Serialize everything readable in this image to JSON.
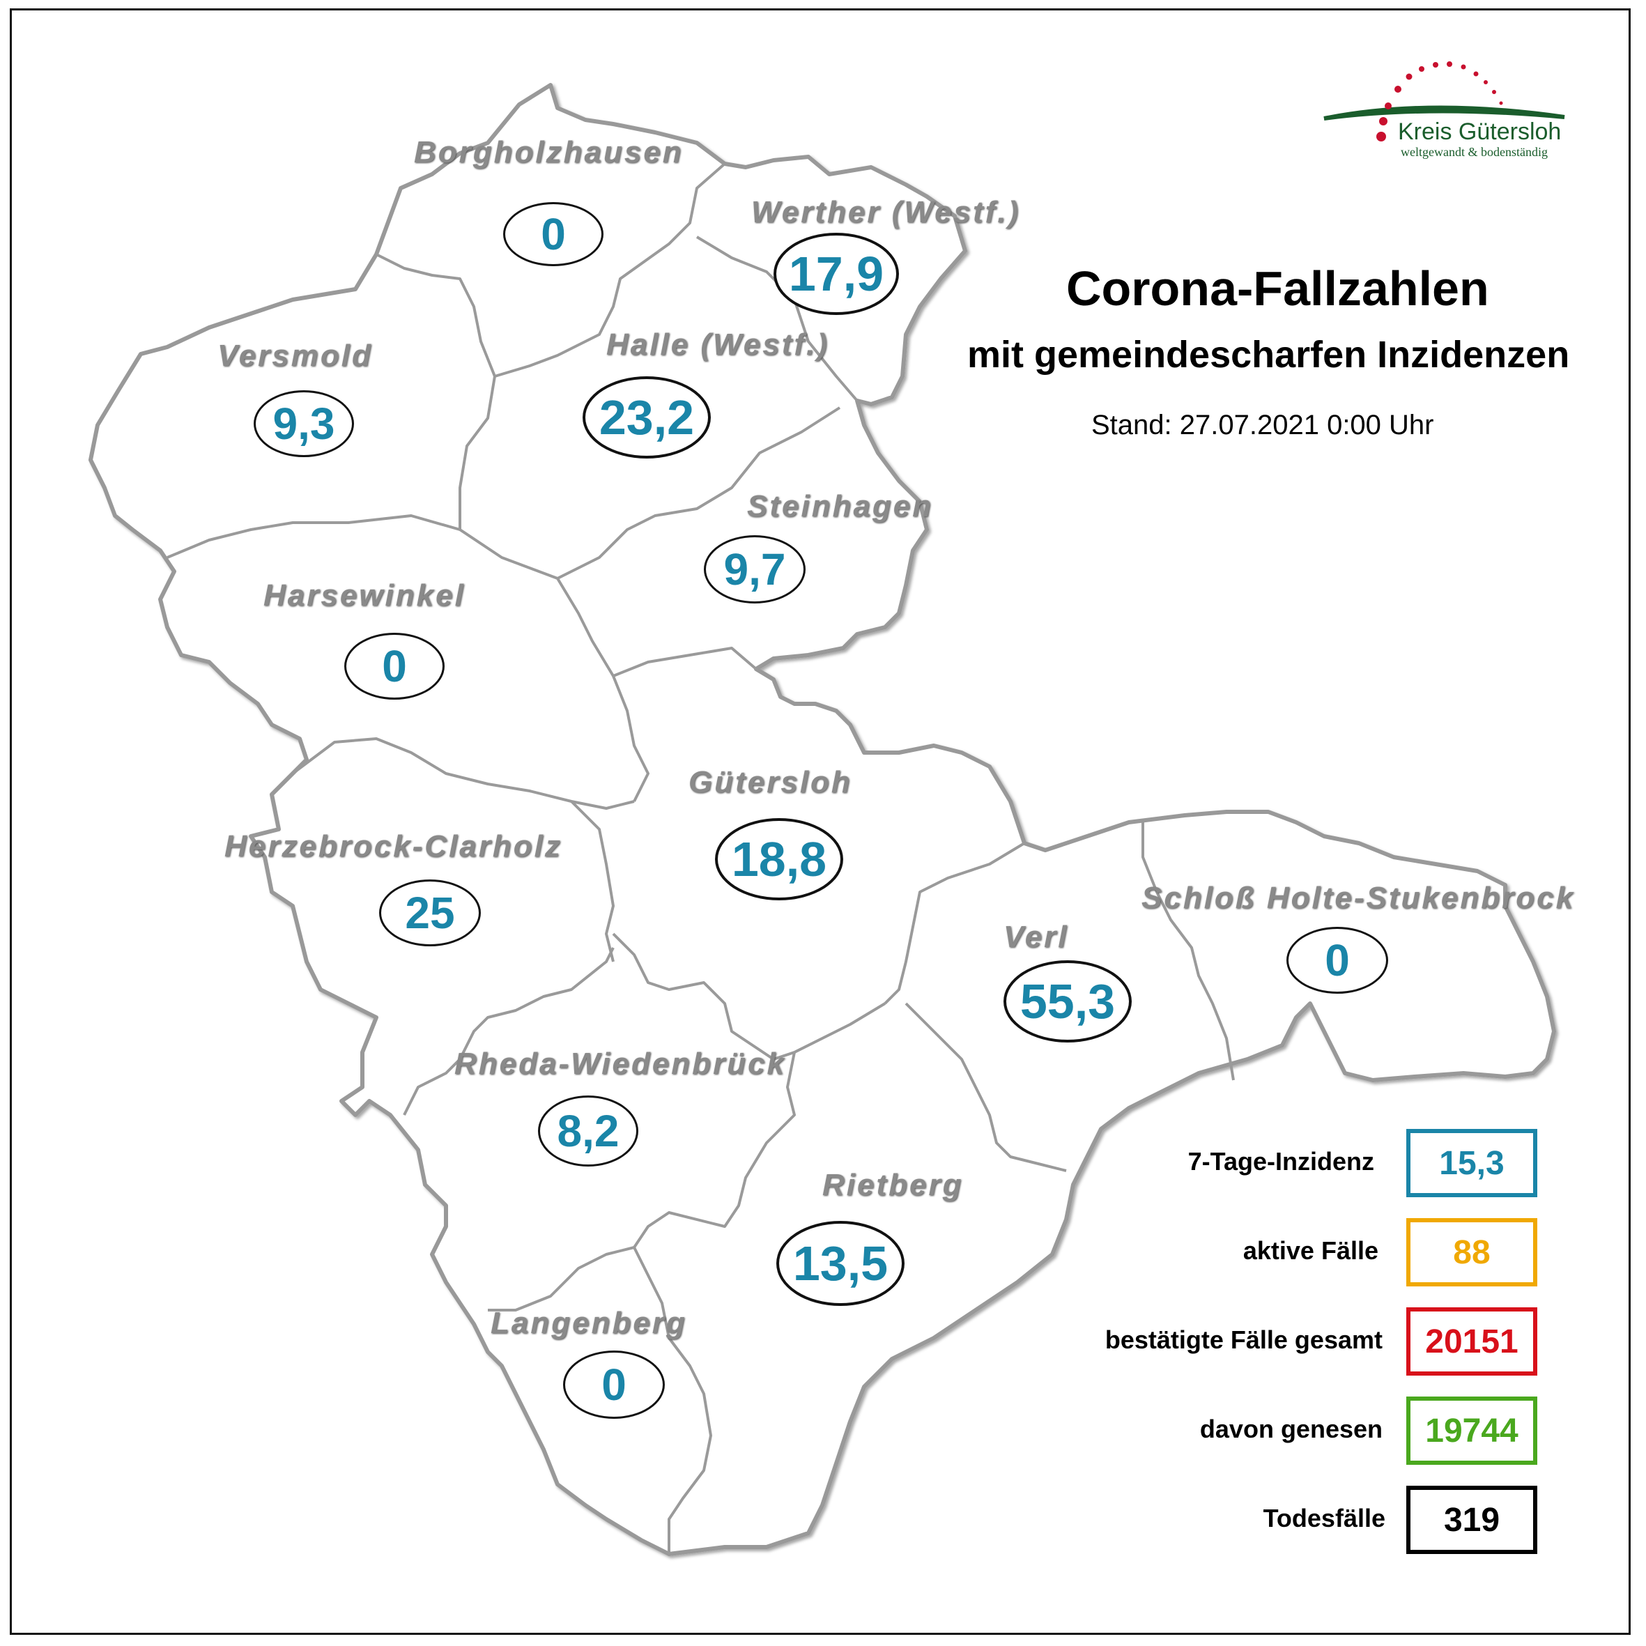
{
  "title": "Corona-Fallzahlen",
  "subtitle": "mit gemeindescharfen Inzidenzen",
  "stand": "Stand: 27.07.2021 0:00 Uhr",
  "logo": {
    "name": "Kreis Gütersloh",
    "slogan": "weltgewandt & bodenständig"
  },
  "municipalities": [
    {
      "name": "Borgholzhausen",
      "incidence": "0"
    },
    {
      "name": "Werther (Westf.)",
      "incidence": "17,9"
    },
    {
      "name": "Versmold",
      "incidence": "9,3"
    },
    {
      "name": "Halle (Westf.)",
      "incidence": "23,2"
    },
    {
      "name": "Steinhagen",
      "incidence": "9,7"
    },
    {
      "name": "Harsewinkel",
      "incidence": "0"
    },
    {
      "name": "Gütersloh",
      "incidence": "18,8"
    },
    {
      "name": "Herzebrock-Clarholz",
      "incidence": "25"
    },
    {
      "name": "Schloß Holte-Stukenbrock",
      "incidence": "0"
    },
    {
      "name": "Verl",
      "incidence": "55,3"
    },
    {
      "name": "Rheda-Wiedenbrück",
      "incidence": "8,2"
    },
    {
      "name": "Rietberg",
      "incidence": "13,5"
    },
    {
      "name": "Langenberg",
      "incidence": "0"
    }
  ],
  "stats": [
    {
      "label": "7-Tage-Inzidenz",
      "value": "15,3",
      "color": "#1a85a8"
    },
    {
      "label": "aktive Fälle",
      "value": "88",
      "color": "#f0a800"
    },
    {
      "label": "bestätigte Fälle gesamt",
      "value": "20151",
      "color": "#d8101a"
    },
    {
      "label": "davon genesen",
      "value": "19744",
      "color": "#4aa81e"
    },
    {
      "label": "Todesfälle",
      "value": "319",
      "color": "#000000"
    }
  ]
}
